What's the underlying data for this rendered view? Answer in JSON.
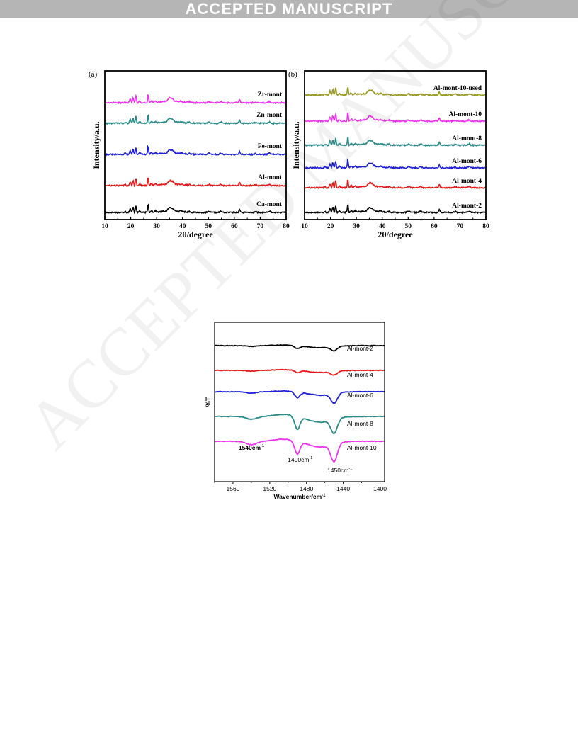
{
  "banner": {
    "text": "ACCEPTED MANUSCRIPT"
  },
  "watermark": {
    "text": "ACCEPTED MANUSCRIPT"
  },
  "chart_data": [
    {
      "type": "line",
      "panel_label": "(a)",
      "xlabel": "2θ/degree",
      "ylabel": "Intensity/a.u.",
      "xlim": [
        10,
        80
      ],
      "xticks": [
        10,
        20,
        30,
        40,
        50,
        60,
        70,
        80
      ],
      "yticks_shown": false,
      "series": [
        {
          "name": "Ca-mont",
          "color": "#000000"
        },
        {
          "name": "Al-mont",
          "color": "#e41a1c"
        },
        {
          "name": "Fe-mont",
          "color": "#1f1fd6"
        },
        {
          "name": "Zn-mont",
          "color": "#2a8a86"
        },
        {
          "name": "Zr-mont",
          "color": "#ee33ee"
        }
      ]
    },
    {
      "type": "line",
      "panel_label": "(b)",
      "xlabel": "2θ/degree",
      "ylabel": "Intensity/a.u.",
      "xlim": [
        10,
        80
      ],
      "xticks": [
        10,
        20,
        30,
        40,
        50,
        60,
        70,
        80
      ],
      "yticks_shown": false,
      "series": [
        {
          "name": "Al-mont-2",
          "color": "#000000"
        },
        {
          "name": "Al-mont-4",
          "color": "#e41a1c"
        },
        {
          "name": "Al-mont-6",
          "color": "#1f1fd6"
        },
        {
          "name": "Al-mont-8",
          "color": "#2a8a86"
        },
        {
          "name": "Al-mont-10",
          "color": "#ee33ee"
        },
        {
          "name": "Al-mont-10-used",
          "color": "#9a9a22"
        }
      ]
    },
    {
      "type": "line",
      "xlabel": "Wavenumber/cm",
      "xlabel_sup": "-1",
      "ylabel": "%T",
      "xlim": [
        1580,
        1395
      ],
      "xticks": [
        1560,
        1520,
        1480,
        1440,
        1400
      ],
      "yticks_shown": false,
      "annotations": [
        {
          "text": "1540cm",
          "sup": "-1",
          "x": 1540
        },
        {
          "text": "1490cm",
          "sup": "-1",
          "x": 1490
        },
        {
          "text": "1450cm",
          "sup": "-1",
          "x": 1450
        }
      ],
      "series": [
        {
          "name": "Al-mont-2",
          "color": "#000000"
        },
        {
          "name": "Al-mont-4",
          "color": "#e41a1c"
        },
        {
          "name": "Al-mont-6",
          "color": "#1f1fd6"
        },
        {
          "name": "Al-mont-8",
          "color": "#2a8a86"
        },
        {
          "name": "Al-mont-10",
          "color": "#ee33ee"
        }
      ]
    }
  ]
}
